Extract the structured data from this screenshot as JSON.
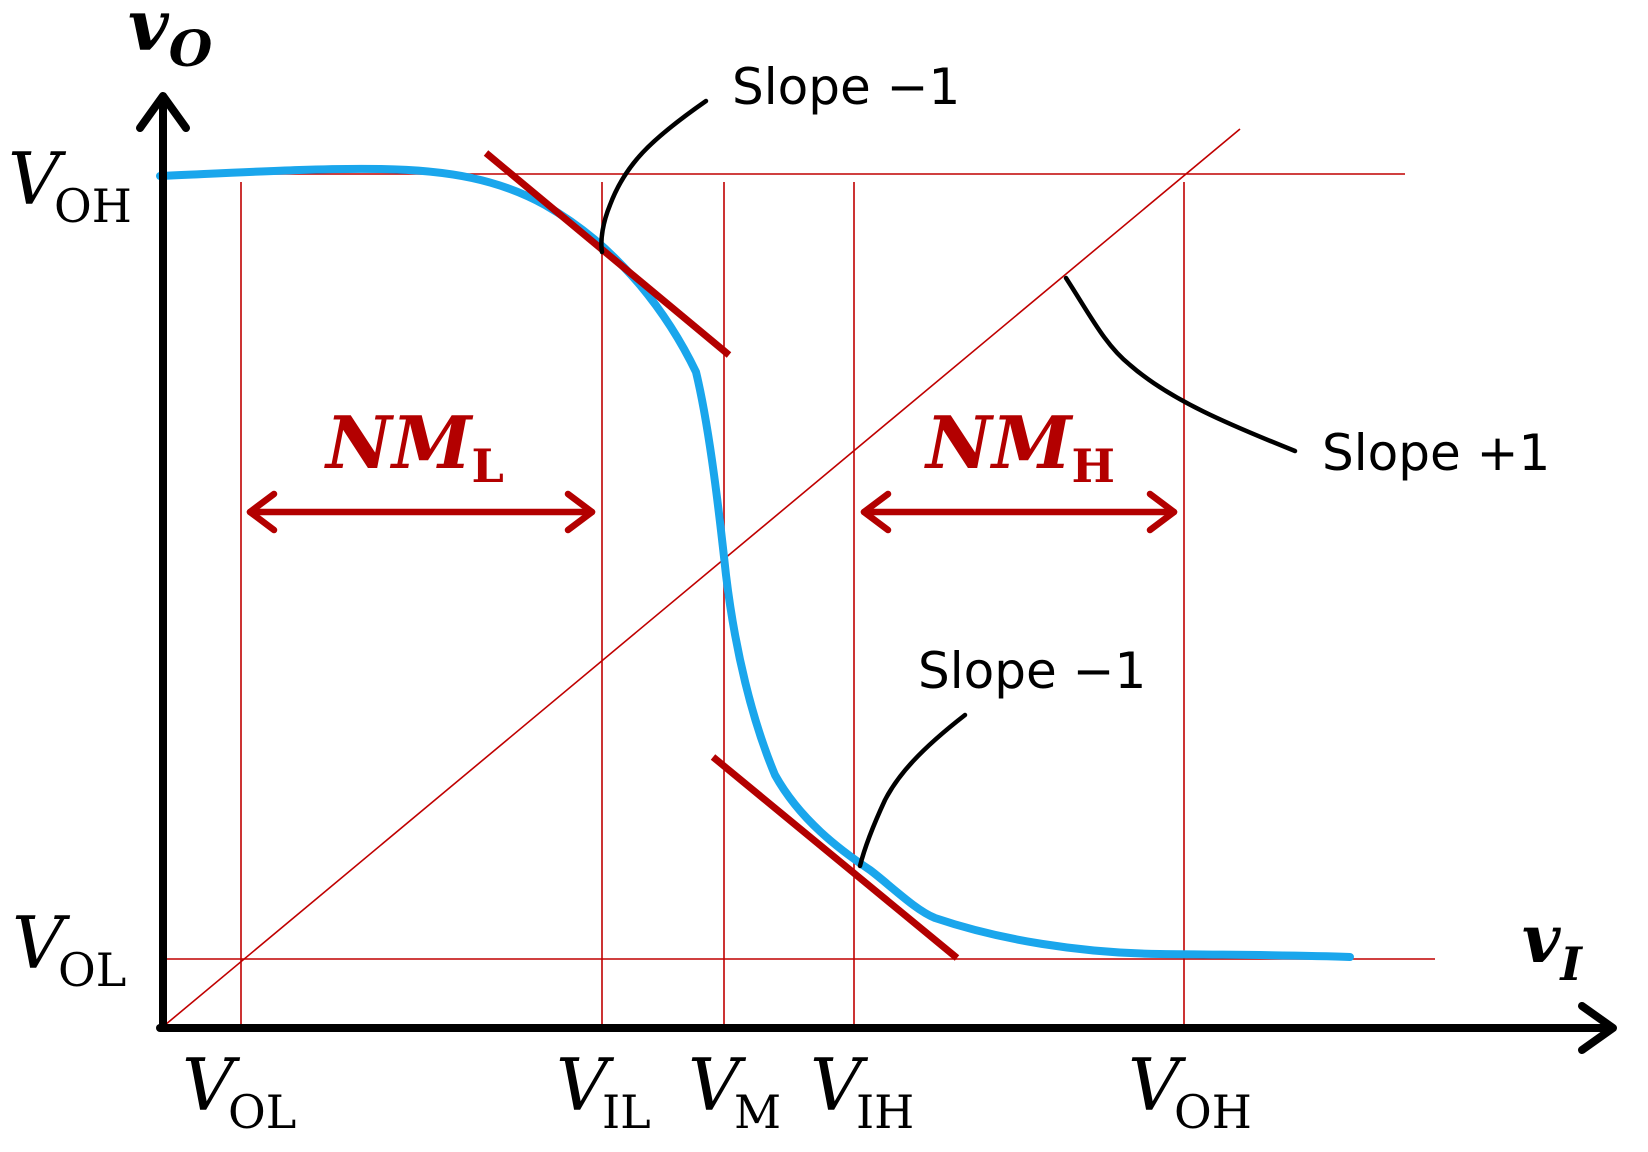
{
  "axes": {
    "y_label": {
      "main": "v",
      "sub": "O"
    },
    "x_label": {
      "main": "v",
      "sub": "I"
    }
  },
  "y_ticks": [
    {
      "main": "V",
      "sub": "OH"
    },
    {
      "main": "V",
      "sub": "OL"
    }
  ],
  "x_ticks": [
    {
      "main": "V",
      "sub": "OL"
    },
    {
      "main": "V",
      "sub": "IL"
    },
    {
      "main": "V",
      "sub": "M"
    },
    {
      "main": "V",
      "sub": "IH"
    },
    {
      "main": "V",
      "sub": "OH"
    }
  ],
  "annotations": {
    "slope_top": "Slope −1",
    "slope_bottom": "Slope −1",
    "slope_unity": "Slope +1"
  },
  "margins": {
    "low": {
      "main": "NM",
      "sub": "L"
    },
    "high": {
      "main": "NM",
      "sub": "H"
    }
  },
  "colors": {
    "curve": "#1aa6ec",
    "guide": "#c00000",
    "tangent": "#b30000",
    "axis": "#000000"
  }
}
